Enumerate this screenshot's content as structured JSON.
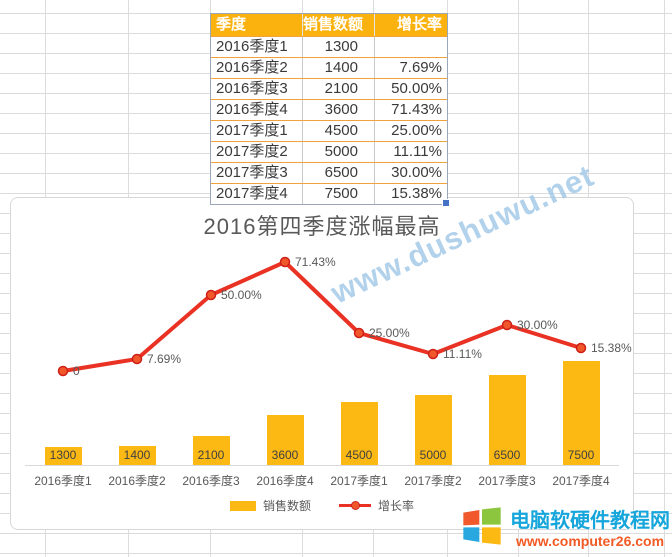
{
  "spreadsheet": {
    "table": {
      "headers": [
        "季度",
        "销售数额",
        "增长率"
      ],
      "rows": [
        [
          "2016季度1",
          "1300",
          ""
        ],
        [
          "2016季度2",
          "1400",
          "7.69%"
        ],
        [
          "2016季度3",
          "2100",
          "50.00%"
        ],
        [
          "2016季度4",
          "3600",
          "71.43%"
        ],
        [
          "2017季度1",
          "4500",
          "25.00%"
        ],
        [
          "2017季度2",
          "5000",
          "11.11%"
        ],
        [
          "2017季度3",
          "6500",
          "30.00%"
        ],
        [
          "2017季度4",
          "7500",
          "15.38%"
        ]
      ]
    }
  },
  "chart_data": {
    "type": "combo",
    "title": "2016第四季度涨幅最高",
    "categories": [
      "2016季度1",
      "2016季度2",
      "2016季度3",
      "2016季度4",
      "2017季度1",
      "2017季度2",
      "2017季度3",
      "2017季度4"
    ],
    "series": [
      {
        "name": "销售数额",
        "type": "bar",
        "values": [
          1300,
          1400,
          2100,
          3600,
          4500,
          5000,
          6500,
          7500
        ],
        "data_labels": [
          "1300",
          "1400",
          "2100",
          "3600",
          "4500",
          "5000",
          "6500",
          "7500"
        ]
      },
      {
        "name": "增长率",
        "type": "line",
        "axis": "secondary",
        "values": [
          0,
          7.69,
          50.0,
          71.43,
          25.0,
          11.11,
          30.0,
          15.38
        ],
        "data_labels": [
          "0",
          "7.69%",
          "50.00%",
          "71.43%",
          "25.00%",
          "11.11%",
          "30.00%",
          "15.38%"
        ]
      }
    ],
    "legend": [
      "销售数额",
      "增长率"
    ],
    "legend_position": "bottom",
    "grid": false
  },
  "watermark": {
    "text": "www.dushuwu.net"
  },
  "logo": {
    "site_name": "电脑软硬件教程网",
    "site_url": "www.computer26.com",
    "flag_colors": [
      "#F1582C",
      "#8CC63E",
      "#29A8E0",
      "#FDB913"
    ]
  },
  "colors": {
    "bar": "#FCB813",
    "line": "#E93223",
    "marker_fill": "#F0582B",
    "marker_stroke": "#CE2018",
    "table_header_bg": "#FCB20E",
    "table_header_text": "#FFFFFF",
    "table_row_border": "#F0A33C",
    "grid_line": "#DCDCDC",
    "label_text": "#595959",
    "watermark": "#9FC7E8",
    "logo_title": "#16A6DB",
    "logo_url": "#F15A24"
  }
}
